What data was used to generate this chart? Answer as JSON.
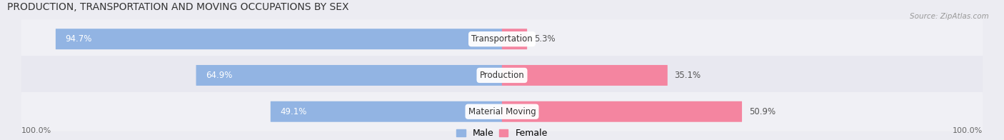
{
  "title": "PRODUCTION, TRANSPORTATION AND MOVING OCCUPATIONS BY SEX",
  "source": "Source: ZipAtlas.com",
  "categories": [
    "Transportation",
    "Production",
    "Material Moving"
  ],
  "male_values": [
    94.7,
    64.9,
    49.1
  ],
  "female_values": [
    5.3,
    35.1,
    50.9
  ],
  "male_color": "#92b4e3",
  "female_color": "#f485a0",
  "male_label": "Male",
  "female_label": "Female",
  "row_bg_colors": [
    "#f0f0f5",
    "#e8e8f0"
  ],
  "axis_label_left": "100.0%",
  "axis_label_right": "100.0%",
  "title_fontsize": 10,
  "bar_fontsize": 8.5,
  "cat_fontsize": 8.5,
  "legend_fontsize": 9,
  "fig_bg_color": "#ececf2"
}
